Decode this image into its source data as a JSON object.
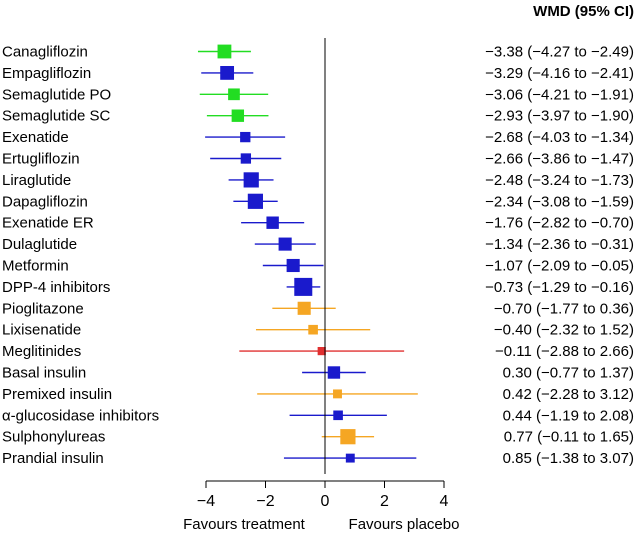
{
  "header": {
    "effect_label": "WMD (95% CI)"
  },
  "footer": {
    "left_label": "Favours treatment",
    "right_label": "Favours placebo"
  },
  "colors": {
    "green": "#22dd22",
    "blue": "#1a1acc",
    "orange": "#f5a623",
    "red": "#e03030",
    "axis": "#000000"
  },
  "chart_data": {
    "type": "forest",
    "xlim": [
      -4,
      4
    ],
    "xticks": [
      -4,
      -2,
      0,
      2,
      4
    ],
    "tick_labels": [
      "−4",
      "−2",
      "0",
      "2",
      "4"
    ],
    "reference_line": 0,
    "grid": false,
    "rows": [
      {
        "label": "Canagliflozin",
        "est": -3.38,
        "lo": -4.27,
        "hi": -2.49,
        "ci": "−3.38 (−4.27 to −2.49)",
        "color": "green",
        "weight": 0.7
      },
      {
        "label": "Empagliflozin",
        "est": -3.29,
        "lo": -4.16,
        "hi": -2.41,
        "ci": "−3.29 (−4.16 to −2.41)",
        "color": "blue",
        "weight": 0.7
      },
      {
        "label": "Semaglutide PO",
        "est": -3.06,
        "lo": -4.21,
        "hi": -1.91,
        "ci": "−3.06 (−4.21 to −1.91)",
        "color": "green",
        "weight": 0.55
      },
      {
        "label": "Semaglutide SC",
        "est": -2.93,
        "lo": -3.97,
        "hi": -1.9,
        "ci": "−2.93 (−3.97 to −1.90)",
        "color": "green",
        "weight": 0.6
      },
      {
        "label": "Exenatide",
        "est": -2.68,
        "lo": -4.03,
        "hi": -1.34,
        "ci": "−2.68 (−4.03 to −1.34)",
        "color": "blue",
        "weight": 0.45
      },
      {
        "label": "Ertugliflozin",
        "est": -2.66,
        "lo": -3.86,
        "hi": -1.47,
        "ci": "−2.66 (−3.86 to −1.47)",
        "color": "blue",
        "weight": 0.45
      },
      {
        "label": "Liraglutide",
        "est": -2.48,
        "lo": -3.24,
        "hi": -1.73,
        "ci": "−2.48 (−3.24 to −1.73)",
        "color": "blue",
        "weight": 0.8
      },
      {
        "label": "Dapagliflozin",
        "est": -2.34,
        "lo": -3.08,
        "hi": -1.59,
        "ci": "−2.34 (−3.08 to −1.59)",
        "color": "blue",
        "weight": 0.8
      },
      {
        "label": "Exenatide ER",
        "est": -1.76,
        "lo": -2.82,
        "hi": -0.7,
        "ci": "−1.76 (−2.82 to −0.70)",
        "color": "blue",
        "weight": 0.6
      },
      {
        "label": "Dulaglutide",
        "est": -1.34,
        "lo": -2.36,
        "hi": -0.31,
        "ci": "−1.34 (−2.36 to −0.31)",
        "color": "blue",
        "weight": 0.65
      },
      {
        "label": "Metformin",
        "est": -1.07,
        "lo": -2.09,
        "hi": -0.05,
        "ci": "−1.07 (−2.09 to −0.05)",
        "color": "blue",
        "weight": 0.65
      },
      {
        "label": "DPP-4 inhibitors",
        "est": -0.73,
        "lo": -1.29,
        "hi": -0.16,
        "ci": "−0.73 (−1.29 to −0.16)",
        "color": "blue",
        "weight": 1.0
      },
      {
        "label": "Pioglitazone",
        "est": -0.7,
        "lo": -1.77,
        "hi": 0.36,
        "ci": "−0.70 (−1.77 to  0.36)",
        "color": "orange",
        "weight": 0.65
      },
      {
        "label": "Lixisenatide",
        "est": -0.4,
        "lo": -2.32,
        "hi": 1.52,
        "ci": "−0.40 (−2.32 to  1.52)",
        "color": "orange",
        "weight": 0.4
      },
      {
        "label": "Meglitinides",
        "est": -0.11,
        "lo": -2.88,
        "hi": 2.66,
        "ci": "−0.11 (−2.88 to  2.66)",
        "color": "red",
        "weight": 0.3
      },
      {
        "label": "Basal insulin",
        "est": 0.3,
        "lo": -0.77,
        "hi": 1.37,
        "ci": "0.30 (−0.77 to  1.37)",
        "color": "blue",
        "weight": 0.6
      },
      {
        "label": "Premixed insulin",
        "est": 0.42,
        "lo": -2.28,
        "hi": 3.12,
        "ci": "0.42 (−2.28 to  3.12)",
        "color": "orange",
        "weight": 0.35
      },
      {
        "label": "α-glucosidase inhibitors",
        "est": 0.44,
        "lo": -1.19,
        "hi": 2.08,
        "ci": "0.44 (−1.19 to  2.08)",
        "color": "blue",
        "weight": 0.4
      },
      {
        "label": "Sulphonylureas",
        "est": 0.77,
        "lo": -0.11,
        "hi": 1.65,
        "ci": "0.77 (−0.11 to  1.65)",
        "color": "orange",
        "weight": 0.8
      },
      {
        "label": "Prandial insulin",
        "est": 0.85,
        "lo": -1.38,
        "hi": 3.07,
        "ci": "0.85 (−1.38 to  3.07)",
        "color": "blue",
        "weight": 0.35
      }
    ]
  }
}
